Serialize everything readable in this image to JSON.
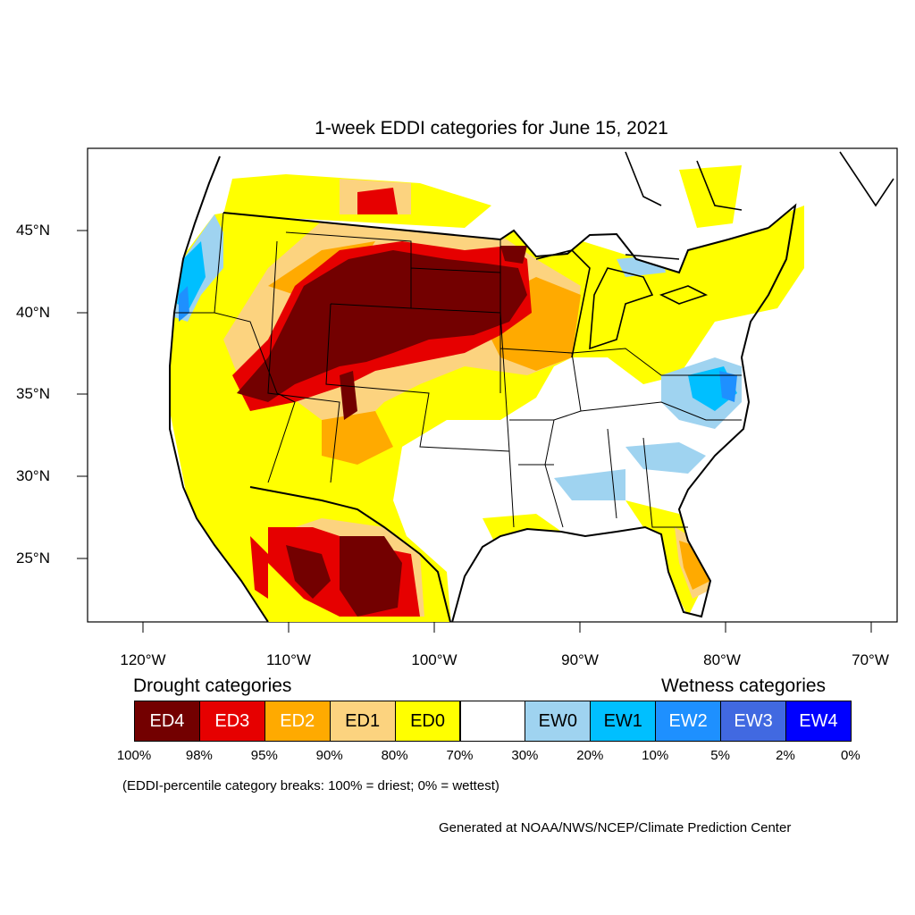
{
  "title": "1-week EDDI categories for June 15, 2021",
  "lat_labels": [
    "45°N",
    "40°N",
    "35°N",
    "30°N",
    "25°N"
  ],
  "lon_labels": [
    "120°W",
    "110°W",
    "100°W",
    "90°W",
    "80°W",
    "70°W"
  ],
  "legend": {
    "drought_heading": "Drought categories",
    "wetness_heading": "Wetness categories",
    "categories": [
      {
        "label": "ED4",
        "color": "#730000",
        "text_color": "#ffffff"
      },
      {
        "label": "ED3",
        "color": "#e60000",
        "text_color": "#ffffff"
      },
      {
        "label": "ED2",
        "color": "#ffaa00",
        "text_color": "#ffffff"
      },
      {
        "label": "ED1",
        "color": "#fcd37f",
        "text_color": "#000000"
      },
      {
        "label": "ED0",
        "color": "#ffff00",
        "text_color": "#000000"
      },
      {
        "label": "",
        "color": "#ffffff",
        "text_color": "#000000"
      },
      {
        "label": "EW0",
        "color": "#9fd3f0",
        "text_color": "#000000"
      },
      {
        "label": "EW1",
        "color": "#00bfff",
        "text_color": "#000000"
      },
      {
        "label": "EW2",
        "color": "#1e90ff",
        "text_color": "#ffffff"
      },
      {
        "label": "EW3",
        "color": "#4169e1",
        "text_color": "#ffffff"
      },
      {
        "label": "EW4",
        "color": "#0000ff",
        "text_color": "#ffffff"
      }
    ],
    "breaks": [
      "100%",
      "98%",
      "95%",
      "90%",
      "80%",
      "70%",
      "30%",
      "20%",
      "10%",
      "5%",
      "2%",
      "0%"
    ]
  },
  "note": "(EDDI-percentile category breaks: 100% = driest; 0% = wettest)",
  "credit": "Generated at NOAA/NWS/NCEP/Climate Prediction Center"
}
